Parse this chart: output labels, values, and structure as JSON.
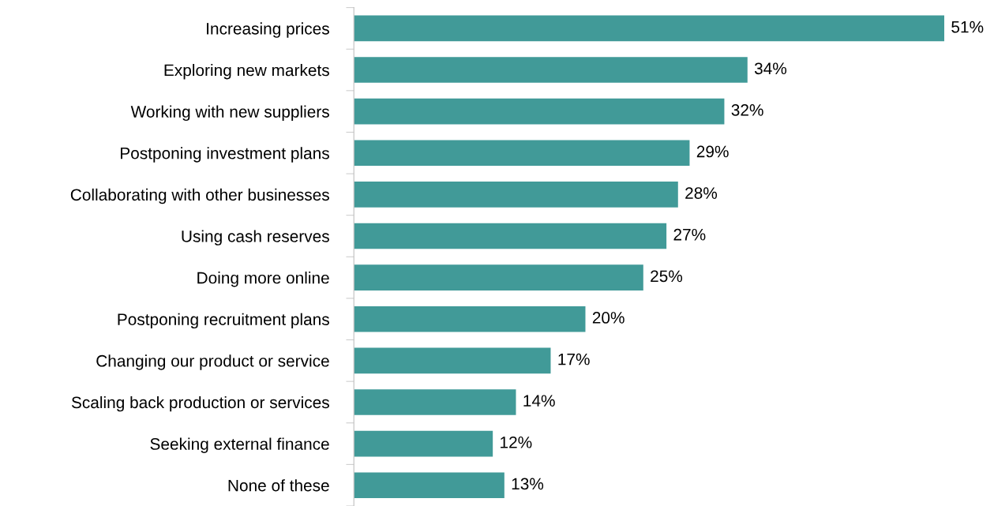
{
  "chart_data": {
    "type": "bar",
    "orientation": "horizontal",
    "categories": [
      "Increasing prices",
      "Exploring new markets",
      "Working with new suppliers",
      "Postponing investment plans",
      "Collaborating with other businesses",
      "Using cash reserves",
      "Doing more online",
      "Postponing recruitment plans",
      "Changing our product or service",
      "Scaling back production or services",
      "Seeking external finance",
      "None of these"
    ],
    "values": [
      51,
      34,
      32,
      29,
      28,
      27,
      25,
      20,
      17,
      14,
      12,
      13
    ],
    "value_labels": [
      "51%",
      "34%",
      "32%",
      "29%",
      "28%",
      "27%",
      "25%",
      "20%",
      "17%",
      "14%",
      "12%",
      "13%"
    ],
    "color": "#419a98",
    "grid": false,
    "legend": false
  }
}
